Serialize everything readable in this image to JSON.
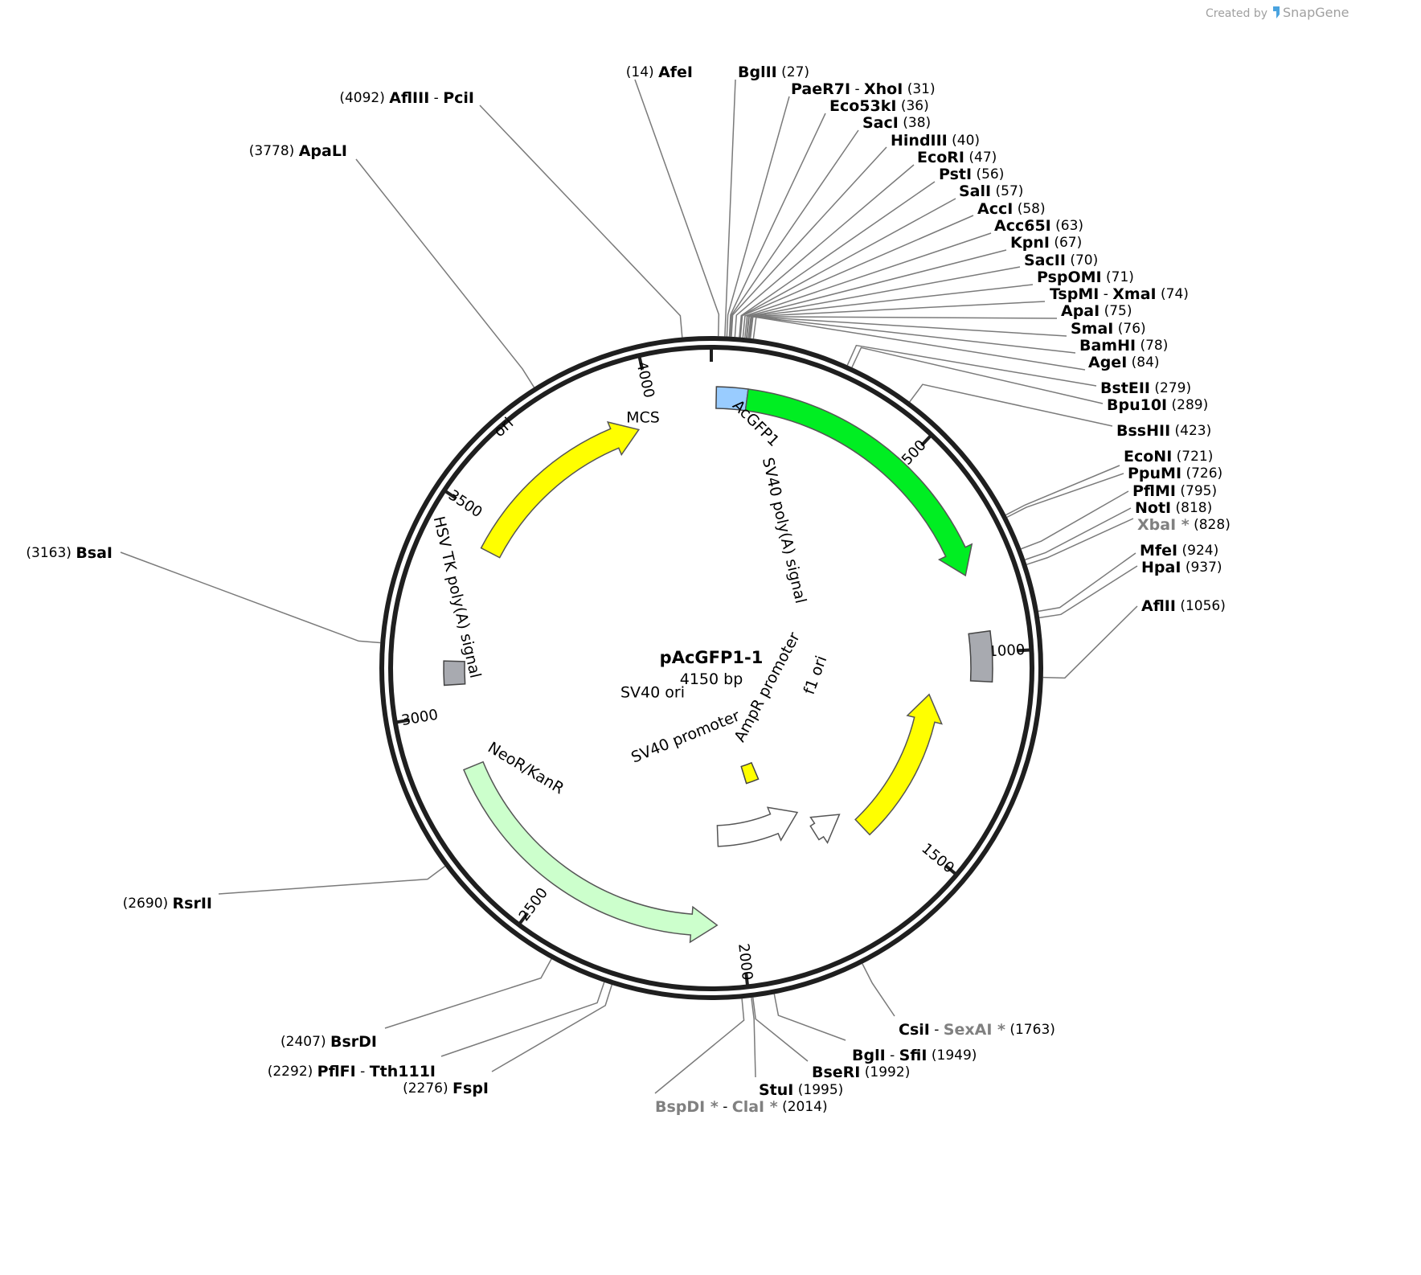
{
  "credit": {
    "created_by": "Created by",
    "brand": "SnapGene"
  },
  "plasmid": {
    "name": "pAcGFP1-1",
    "length_label": "4150 bp",
    "length": 4150
  },
  "ticks": [
    {
      "pos": 500,
      "label": "500"
    },
    {
      "pos": 1000,
      "label": "1000"
    },
    {
      "pos": 1500,
      "label": "1500"
    },
    {
      "pos": 2000,
      "label": "2000"
    },
    {
      "pos": 2500,
      "label": "2500"
    },
    {
      "pos": 3000,
      "label": "3000"
    },
    {
      "pos": 3500,
      "label": "3500"
    },
    {
      "pos": 4000,
      "label": "4000"
    }
  ],
  "features": [
    {
      "name": "MCS",
      "start": 12,
      "end": 87,
      "type": "box",
      "color": "#99ccff"
    },
    {
      "name": "AcGFP1",
      "start": 87,
      "end": 807,
      "type": "arrow",
      "dir": 1,
      "color": "#00ee22"
    },
    {
      "name": "SV40 poly(A) signal",
      "start": 950,
      "end": 1070,
      "type": "box",
      "color": "#a8aab0"
    },
    {
      "name": "f1 ori",
      "start": 1117,
      "end": 1573,
      "type": "arrow",
      "dir": -1,
      "color": "#ffff00"
    },
    {
      "name": "AmpR promoter",
      "start": 1600,
      "end": 1705,
      "type": "arrow",
      "dir": -1,
      "color": "#ffffff"
    },
    {
      "name": "SV40 promoter",
      "start": 1720,
      "end": 2050,
      "type": "arrow",
      "dir": -1,
      "color": "#ffffff"
    },
    {
      "name": "SV40 ori",
      "start": 1810,
      "end": 1880,
      "type": "box",
      "color": "#ffff00"
    },
    {
      "name": "NeoR/KanR",
      "start": 2060,
      "end": 2855,
      "type": "arrow",
      "dir": -1,
      "color": "#ccffcc"
    },
    {
      "name": "HSV TK poly(A) signal",
      "start": 3070,
      "end": 3130,
      "type": "box",
      "color": "#a8aab0"
    },
    {
      "name": "ori",
      "start": 3430,
      "end": 3955,
      "type": "arrow",
      "dir": 1,
      "color": "#ffff00"
    }
  ],
  "sites": [
    {
      "pos": 14,
      "parts": [
        {
          "t": "AfeI",
          "gray": false
        }
      ],
      "number": "(14)"
    },
    {
      "pos": 27,
      "parts": [
        {
          "t": "BglII",
          "gray": false
        }
      ],
      "number": "(27)"
    },
    {
      "pos": 31,
      "parts": [
        {
          "t": "PaeR7I",
          "gray": false
        },
        {
          "t": "XhoI",
          "gray": false
        }
      ],
      "number": "(31)"
    },
    {
      "pos": 36,
      "parts": [
        {
          "t": "Eco53kI",
          "gray": false
        }
      ],
      "number": "(36)"
    },
    {
      "pos": 38,
      "parts": [
        {
          "t": "SacI",
          "gray": false
        }
      ],
      "number": "(38)"
    },
    {
      "pos": 40,
      "parts": [
        {
          "t": "HindIII",
          "gray": false
        }
      ],
      "number": "(40)"
    },
    {
      "pos": 47,
      "parts": [
        {
          "t": "EcoRI",
          "gray": false
        }
      ],
      "number": "(47)"
    },
    {
      "pos": 56,
      "parts": [
        {
          "t": "PstI",
          "gray": false
        }
      ],
      "number": "(56)"
    },
    {
      "pos": 57,
      "parts": [
        {
          "t": "SalI",
          "gray": false
        }
      ],
      "number": "(57)"
    },
    {
      "pos": 58,
      "parts": [
        {
          "t": "AccI",
          "gray": false
        }
      ],
      "number": "(58)"
    },
    {
      "pos": 63,
      "parts": [
        {
          "t": "Acc65I",
          "gray": false
        }
      ],
      "number": "(63)"
    },
    {
      "pos": 67,
      "parts": [
        {
          "t": "KpnI",
          "gray": false
        }
      ],
      "number": "(67)"
    },
    {
      "pos": 70,
      "parts": [
        {
          "t": "SacII",
          "gray": false
        }
      ],
      "number": "(70)"
    },
    {
      "pos": 71,
      "parts": [
        {
          "t": "PspOMI",
          "gray": false
        }
      ],
      "number": "(71)"
    },
    {
      "pos": 74,
      "parts": [
        {
          "t": "TspMI",
          "gray": false
        },
        {
          "t": "XmaI",
          "gray": false
        }
      ],
      "number": "(74)"
    },
    {
      "pos": 75,
      "parts": [
        {
          "t": "ApaI",
          "gray": false
        }
      ],
      "number": "(75)"
    },
    {
      "pos": 76,
      "parts": [
        {
          "t": "SmaI",
          "gray": false
        }
      ],
      "number": "(76)"
    },
    {
      "pos": 78,
      "parts": [
        {
          "t": "BamHI",
          "gray": false
        }
      ],
      "number": "(78)"
    },
    {
      "pos": 84,
      "parts": [
        {
          "t": "AgeI",
          "gray": false
        }
      ],
      "number": "(84)"
    },
    {
      "pos": 279,
      "parts": [
        {
          "t": "BstEII",
          "gray": false
        }
      ],
      "number": "(279)"
    },
    {
      "pos": 289,
      "parts": [
        {
          "t": "Bpu10I",
          "gray": false
        }
      ],
      "number": "(289)"
    },
    {
      "pos": 423,
      "parts": [
        {
          "t": "BssHII",
          "gray": false
        }
      ],
      "number": "(423)"
    },
    {
      "pos": 721,
      "parts": [
        {
          "t": "EcoNI",
          "gray": false
        }
      ],
      "number": "(721)"
    },
    {
      "pos": 726,
      "parts": [
        {
          "t": "PpuMI",
          "gray": false
        }
      ],
      "number": "(726)"
    },
    {
      "pos": 795,
      "parts": [
        {
          "t": "PflMI",
          "gray": false
        }
      ],
      "number": "(795)"
    },
    {
      "pos": 818,
      "parts": [
        {
          "t": "NotI",
          "gray": false
        }
      ],
      "number": "(818)"
    },
    {
      "pos": 828,
      "parts": [
        {
          "t": "XbaI *",
          "gray": true
        }
      ],
      "number": "(828)"
    },
    {
      "pos": 924,
      "parts": [
        {
          "t": "MfeI",
          "gray": false
        }
      ],
      "number": "(924)"
    },
    {
      "pos": 937,
      "parts": [
        {
          "t": "HpaI",
          "gray": false
        }
      ],
      "number": "(937)"
    },
    {
      "pos": 1056,
      "parts": [
        {
          "t": "AflII",
          "gray": false
        }
      ],
      "number": "(1056)"
    },
    {
      "pos": 1763,
      "parts": [
        {
          "t": "CsiI",
          "gray": false
        },
        {
          "t": "SexAI *",
          "gray": true
        }
      ],
      "number": "(1763)"
    },
    {
      "pos": 1949,
      "parts": [
        {
          "t": "BglI",
          "gray": false
        },
        {
          "t": "SfiI",
          "gray": false
        }
      ],
      "number": "(1949)"
    },
    {
      "pos": 1992,
      "parts": [
        {
          "t": "BseRI",
          "gray": false
        }
      ],
      "number": "(1992)"
    },
    {
      "pos": 1995,
      "parts": [
        {
          "t": "StuI",
          "gray": false
        }
      ],
      "number": "(1995)"
    },
    {
      "pos": 2014,
      "parts": [
        {
          "t": "BspDI *",
          "gray": true
        },
        {
          "t": "ClaI *",
          "gray": true
        }
      ],
      "number": "(2014)"
    },
    {
      "pos": 2276,
      "parts": [
        {
          "t": "FspI",
          "gray": false
        }
      ],
      "number": "(2276)"
    },
    {
      "pos": 2292,
      "parts": [
        {
          "t": "PflFI",
          "gray": false
        },
        {
          "t": "Tth111I",
          "gray": false
        }
      ],
      "number": "(2292)"
    },
    {
      "pos": 2407,
      "parts": [
        {
          "t": "BsrDI",
          "gray": false
        }
      ],
      "number": "(2407)"
    },
    {
      "pos": 2690,
      "parts": [
        {
          "t": "RsrII",
          "gray": false
        }
      ],
      "number": "(2690)"
    },
    {
      "pos": 3163,
      "parts": [
        {
          "t": "BsaI",
          "gray": false
        }
      ],
      "number": "(3163)"
    },
    {
      "pos": 3778,
      "parts": [
        {
          "t": "ApaLI",
          "gray": false
        }
      ],
      "number": "(3778)"
    },
    {
      "pos": 4092,
      "parts": [
        {
          "t": "AflIII",
          "gray": false
        },
        {
          "t": "PciI",
          "gray": false
        }
      ],
      "number": "(4092)"
    }
  ]
}
